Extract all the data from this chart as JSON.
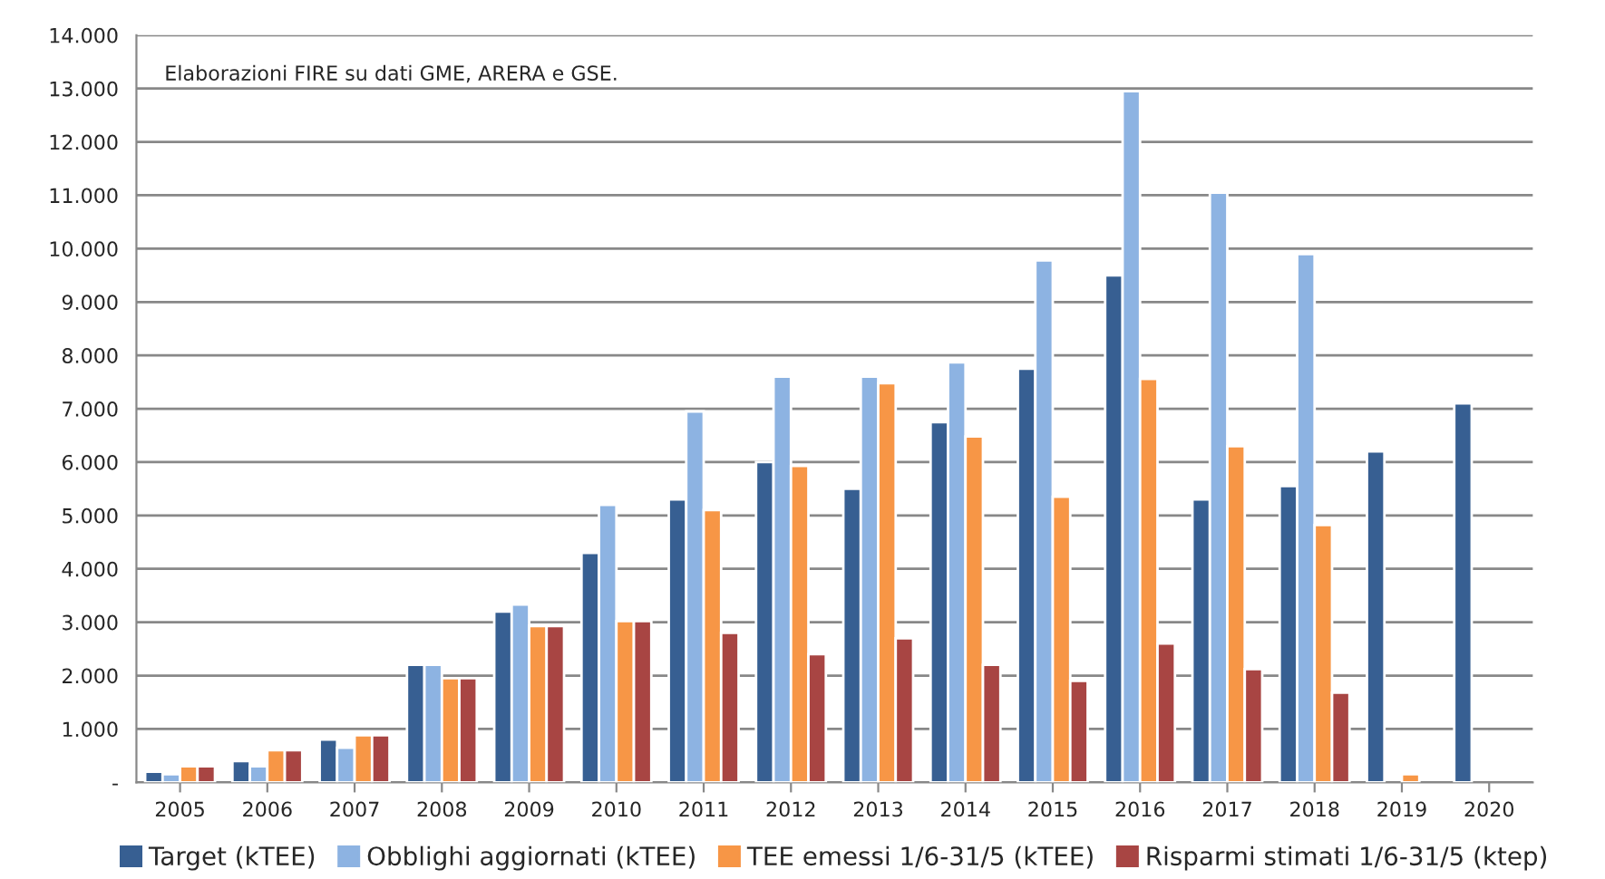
{
  "chart_data": {
    "type": "bar",
    "categories": [
      "2005",
      "2006",
      "2007",
      "2008",
      "2009",
      "2010",
      "2011",
      "2012",
      "2013",
      "2014",
      "2015",
      "2016",
      "2017",
      "2018",
      "2019",
      "2020"
    ],
    "series": [
      {
        "name": "Target (kTEE)",
        "color": "#375f92",
        "values": [
          200,
          400,
          800,
          2200,
          3200,
          4300,
          5300,
          6000,
          5500,
          6750,
          7750,
          9500,
          5300,
          5550,
          6200,
          7100
        ]
      },
      {
        "name": "Obblighi aggiornati (kTEE)",
        "color": "#8db3e2",
        "values": [
          150,
          300,
          650,
          2200,
          3330,
          5200,
          6950,
          7600,
          7600,
          7870,
          9780,
          12950,
          11050,
          9900,
          null,
          null
        ]
      },
      {
        "name": "TEE emessi 1/6-31/5 (kTEE)",
        "color": "#f79646",
        "values": [
          300,
          600,
          880,
          1950,
          2930,
          3020,
          5100,
          5930,
          7480,
          6480,
          5350,
          7560,
          6300,
          4820,
          150,
          null
        ]
      },
      {
        "name": "Risparmi stimati 1/6-31/5 (ktep)",
        "color": "#a84543",
        "values": [
          300,
          600,
          880,
          1950,
          2930,
          3020,
          2800,
          2400,
          2700,
          2200,
          1900,
          2600,
          2120,
          1680,
          null,
          null
        ]
      }
    ],
    "ylim": [
      0,
      14000
    ],
    "yticks": [
      {
        "value": 0,
        "label": "-"
      },
      {
        "value": 1000,
        "label": "1.000"
      },
      {
        "value": 2000,
        "label": "2.000"
      },
      {
        "value": 3000,
        "label": "3.000"
      },
      {
        "value": 4000,
        "label": "4.000"
      },
      {
        "value": 5000,
        "label": "5.000"
      },
      {
        "value": 6000,
        "label": "6.000"
      },
      {
        "value": 7000,
        "label": "7.000"
      },
      {
        "value": 8000,
        "label": "8.000"
      },
      {
        "value": 9000,
        "label": "9.000"
      },
      {
        "value": 10000,
        "label": "10.000"
      },
      {
        "value": 11000,
        "label": "11.000"
      },
      {
        "value": 12000,
        "label": "12.000"
      },
      {
        "value": 13000,
        "label": "13.000"
      },
      {
        "value": 14000,
        "label": "14.000"
      }
    ],
    "annotations": [
      "Elaborazioni FIRE su dati GME, ARERA e GSE."
    ],
    "grid": "y",
    "legend": "bottom"
  }
}
